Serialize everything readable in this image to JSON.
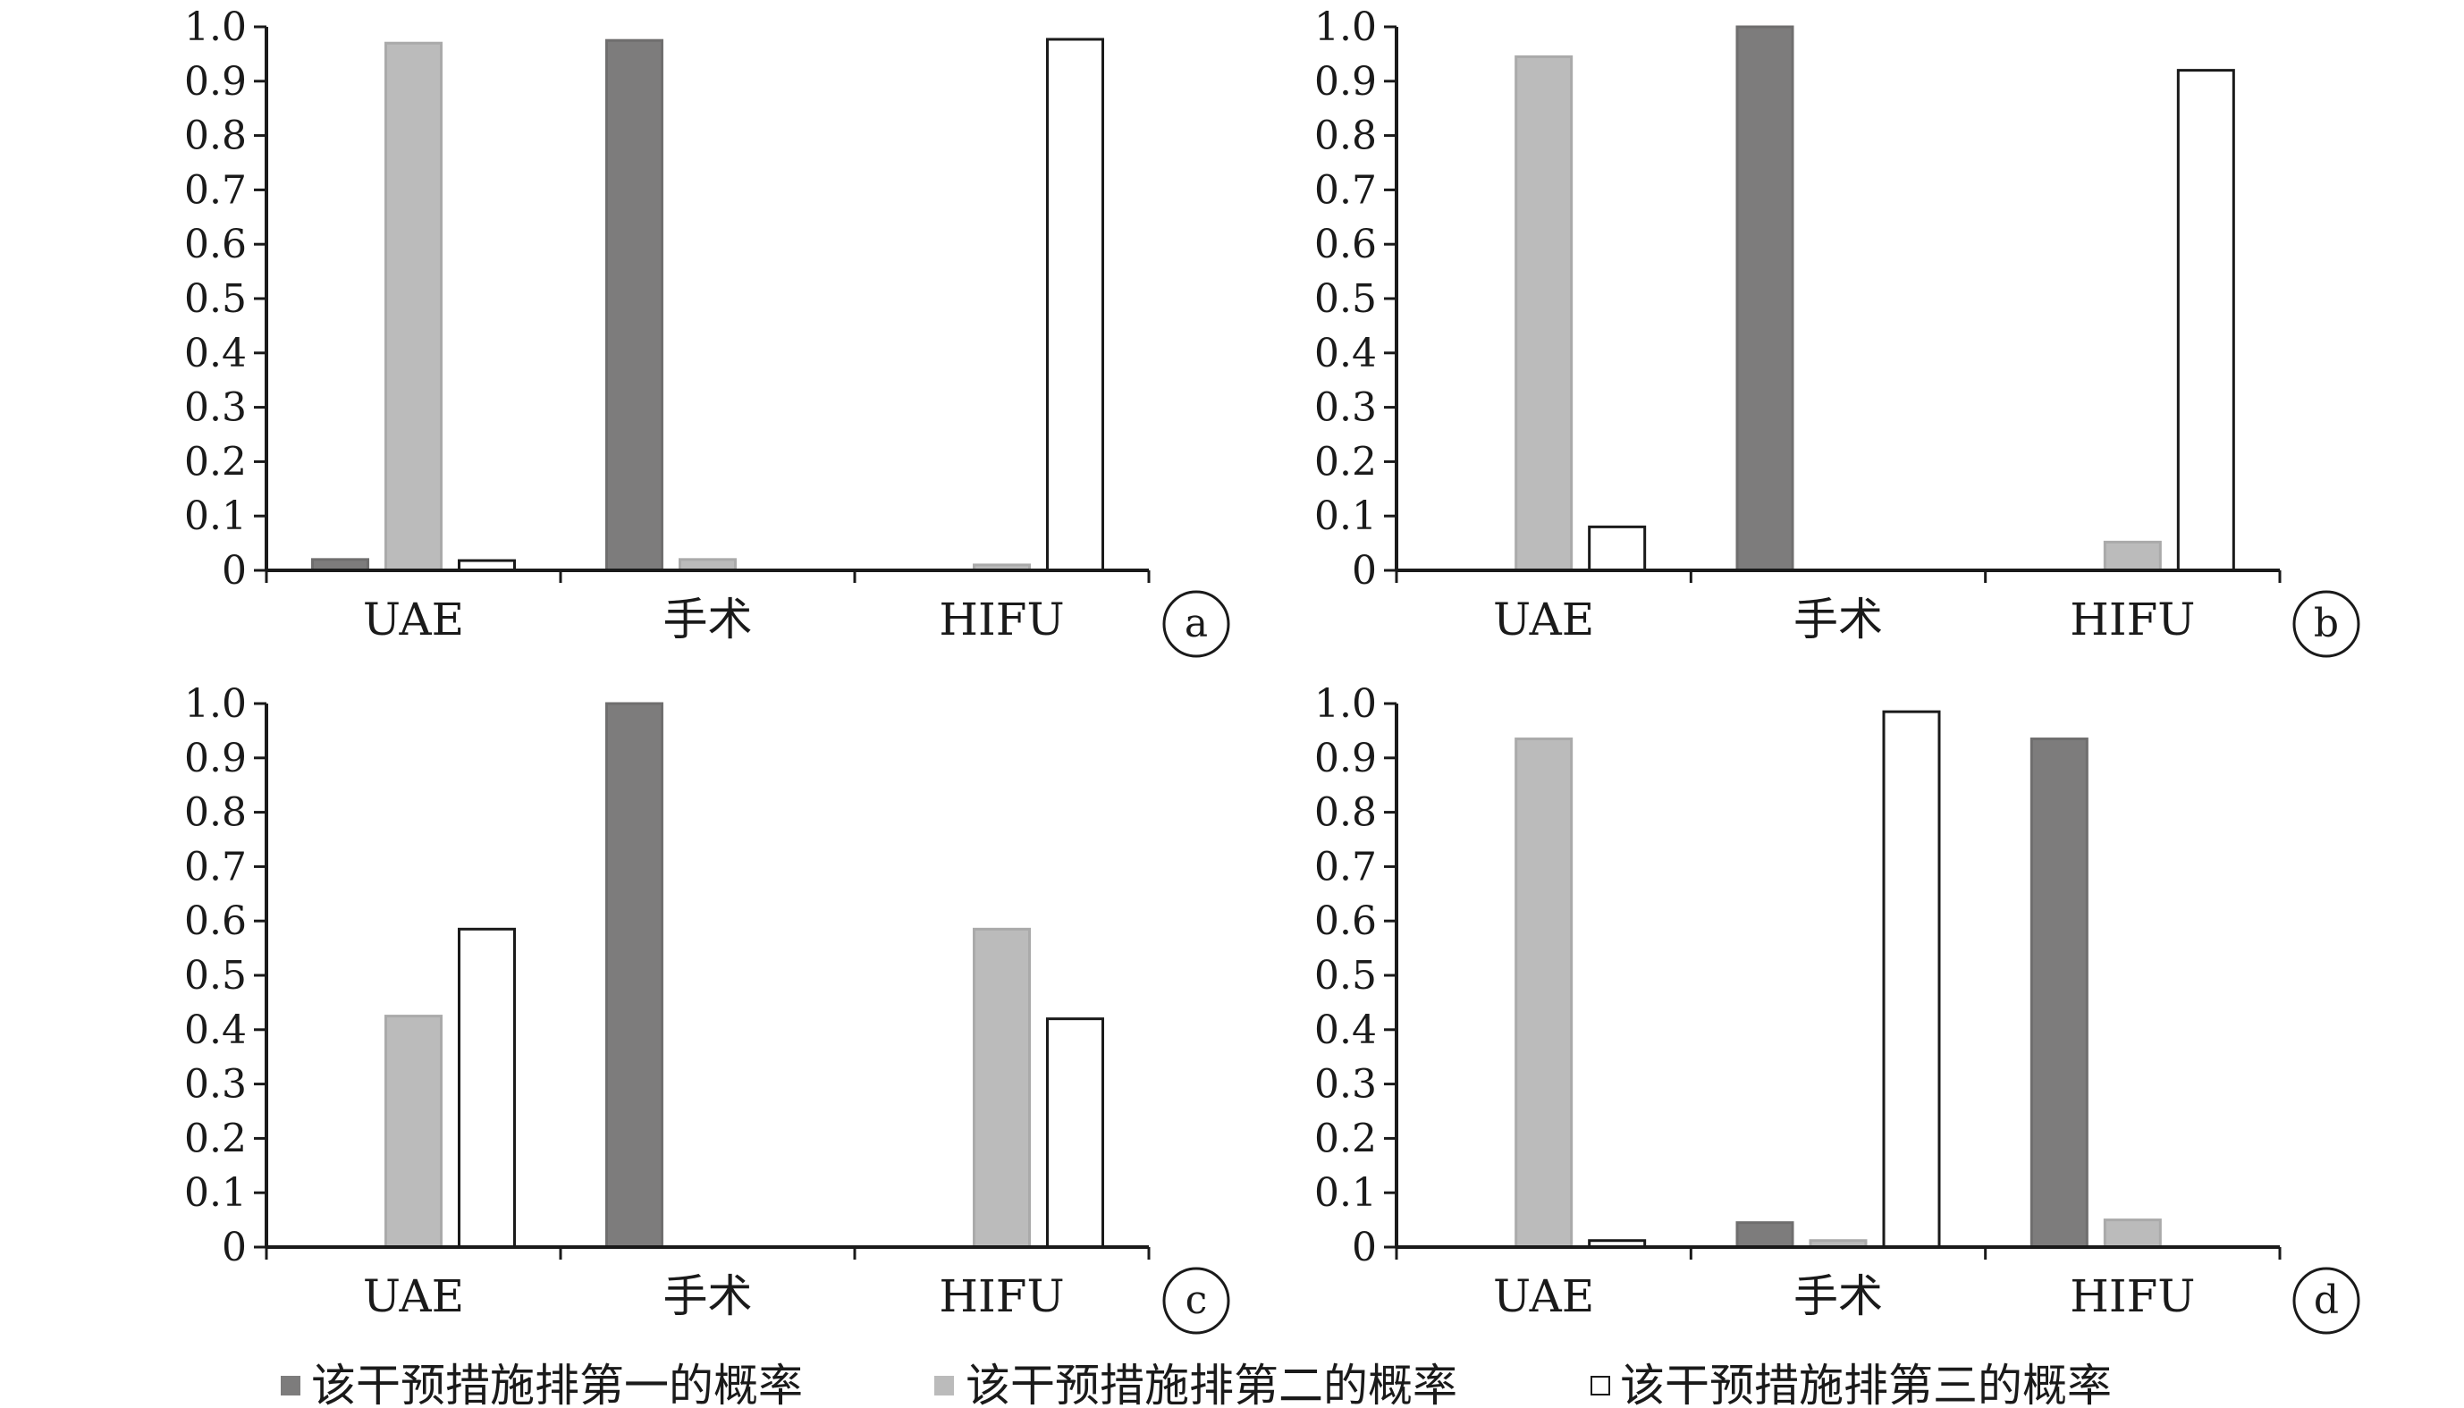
{
  "legend": [
    {
      "key": "first",
      "label": "该干预措施排第一的概率",
      "color": "#7d7c7c"
    },
    {
      "key": "second",
      "label": "该干预措施排第二的概率",
      "color": "#bbbbbb"
    },
    {
      "key": "third",
      "label": "该干预措施排第三的概率",
      "color": "#ffffff"
    }
  ],
  "chart_data": [
    {
      "panel": "a",
      "type": "bar",
      "categories": [
        "UAE",
        "手术",
        "HIFU"
      ],
      "ylim": [
        0,
        1.0
      ],
      "yticks": [
        "0",
        "0.1",
        "0.2",
        "0.3",
        "0.4",
        "0.5",
        "0.6",
        "0.7",
        "0.8",
        "0.9",
        "1.0"
      ],
      "series": [
        {
          "name": "该干预措施排第一的概率",
          "values": [
            0.02,
            0.975,
            0
          ]
        },
        {
          "name": "该干预措施排第二的概率",
          "values": [
            0.97,
            0.02,
            0.01
          ]
        },
        {
          "name": "该干预措施排第三的概率",
          "values": [
            0.018,
            0,
            0.977
          ]
        }
      ]
    },
    {
      "panel": "b",
      "type": "bar",
      "categories": [
        "UAE",
        "手术",
        "HIFU"
      ],
      "ylim": [
        0,
        1.0
      ],
      "yticks": [
        "0",
        "0.1",
        "0.2",
        "0.3",
        "0.4",
        "0.5",
        "0.6",
        "0.7",
        "0.8",
        "0.9",
        "1.0"
      ],
      "series": [
        {
          "name": "该干预措施排第一的概率",
          "values": [
            0,
            1.0,
            0
          ]
        },
        {
          "name": "该干预措施排第二的概率",
          "values": [
            0.945,
            0,
            0.052
          ]
        },
        {
          "name": "该干预措施排第三的概率",
          "values": [
            0.08,
            0,
            0.92
          ]
        }
      ]
    },
    {
      "panel": "c",
      "type": "bar",
      "categories": [
        "UAE",
        "手术",
        "HIFU"
      ],
      "ylim": [
        0,
        1.0
      ],
      "yticks": [
        "0",
        "0.1",
        "0.2",
        "0.3",
        "0.4",
        "0.5",
        "0.6",
        "0.7",
        "0.8",
        "0.9",
        "1.0"
      ],
      "series": [
        {
          "name": "该干预措施排第一的概率",
          "values": [
            0,
            1.0,
            0
          ]
        },
        {
          "name": "该干预措施排第二的概率",
          "values": [
            0.425,
            0,
            0.585
          ]
        },
        {
          "name": "该干预措施排第三的概率",
          "values": [
            0.585,
            0,
            0.42
          ]
        }
      ]
    },
    {
      "panel": "d",
      "type": "bar",
      "categories": [
        "UAE",
        "手术",
        "HIFU"
      ],
      "ylim": [
        0,
        1.0
      ],
      "yticks": [
        "0",
        "0.1",
        "0.2",
        "0.3",
        "0.4",
        "0.5",
        "0.6",
        "0.7",
        "0.8",
        "0.9",
        "1.0"
      ],
      "series": [
        {
          "name": "该干预措施排第一的概率",
          "values": [
            0,
            0.045,
            0.935
          ]
        },
        {
          "name": "该干预措施排第二的概率",
          "values": [
            0.935,
            0.012,
            0.05
          ]
        },
        {
          "name": "该干预措施排第三的概率",
          "values": [
            0.012,
            0.985,
            0
          ]
        }
      ]
    }
  ]
}
